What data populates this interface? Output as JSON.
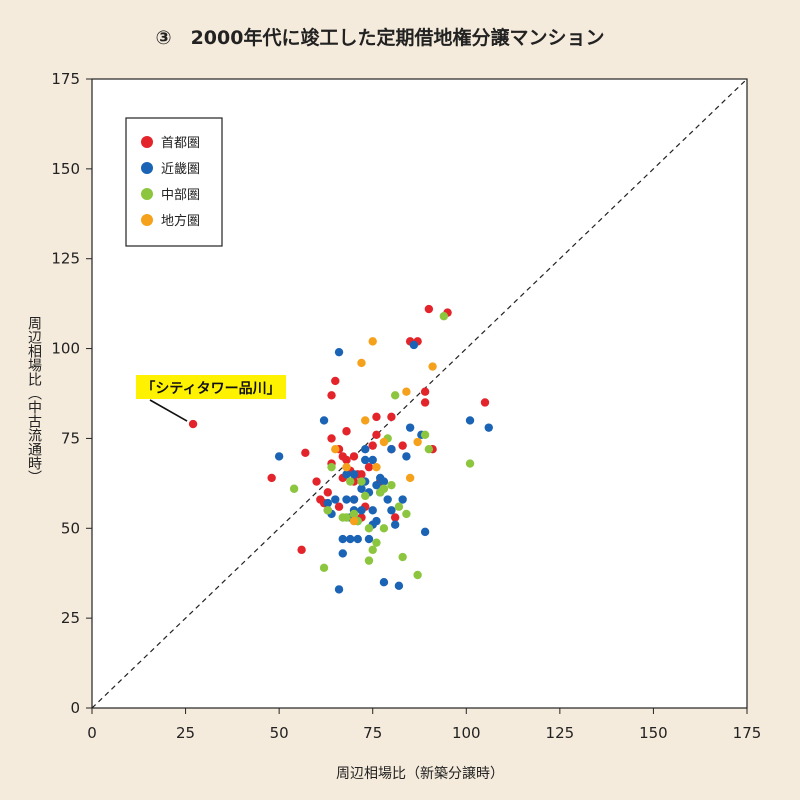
{
  "chart_data": {
    "type": "scatter",
    "title": "③　2000年代に竣工した定期借地権分譲マンション",
    "xlabel": "周辺相場比（新築分譲時）",
    "ylabel": "周辺相場比（中古流通時）",
    "xlim": [
      0,
      175
    ],
    "ylim": [
      0,
      175
    ],
    "xticks": [
      0,
      25,
      50,
      75,
      100,
      125,
      150,
      175
    ],
    "yticks": [
      0,
      25,
      50,
      75,
      100,
      125,
      150,
      175
    ],
    "grid": false,
    "reference_line": "y=x (dashed)",
    "legend_position": "top-left",
    "colors": {
      "首都圏": "#e3242b",
      "近畿圏": "#1a63b5",
      "中部圏": "#8cc63f",
      "地方圏": "#f5a11c"
    },
    "annotation": {
      "text": "「シティタワー品川」",
      "x": 27,
      "y": 79
    },
    "series": [
      {
        "name": "首都圏",
        "points": [
          [
            27,
            79
          ],
          [
            48,
            64
          ],
          [
            56,
            44
          ],
          [
            57,
            71
          ],
          [
            60,
            63
          ],
          [
            61,
            58
          ],
          [
            62,
            57
          ],
          [
            63,
            60
          ],
          [
            63,
            55
          ],
          [
            64,
            87
          ],
          [
            64,
            75
          ],
          [
            64,
            68
          ],
          [
            65,
            91
          ],
          [
            66,
            72
          ],
          [
            66,
            56
          ],
          [
            67,
            70
          ],
          [
            67,
            64
          ],
          [
            68,
            77
          ],
          [
            68,
            69
          ],
          [
            69,
            66
          ],
          [
            70,
            70
          ],
          [
            70,
            63
          ],
          [
            70,
            58
          ],
          [
            71,
            65
          ],
          [
            72,
            65
          ],
          [
            72,
            53
          ],
          [
            73,
            56
          ],
          [
            74,
            67
          ],
          [
            75,
            73
          ],
          [
            76,
            81
          ],
          [
            76,
            76
          ],
          [
            77,
            63
          ],
          [
            80,
            72
          ],
          [
            80,
            81
          ],
          [
            81,
            53
          ],
          [
            83,
            73
          ],
          [
            85,
            102
          ],
          [
            87,
            102
          ],
          [
            89,
            85
          ],
          [
            89,
            88
          ],
          [
            90,
            111
          ],
          [
            91,
            72
          ],
          [
            95,
            110
          ],
          [
            105,
            85
          ]
        ]
      },
      {
        "name": "近畿圏",
        "points": [
          [
            50,
            70
          ],
          [
            62,
            80
          ],
          [
            63,
            57
          ],
          [
            64,
            54
          ],
          [
            65,
            58
          ],
          [
            66,
            99
          ],
          [
            66,
            33
          ],
          [
            67,
            47
          ],
          [
            67,
            43
          ],
          [
            68,
            65
          ],
          [
            68,
            58
          ],
          [
            69,
            53
          ],
          [
            69,
            47
          ],
          [
            70,
            65
          ],
          [
            70,
            58
          ],
          [
            70,
            55
          ],
          [
            71,
            47
          ],
          [
            71,
            52
          ],
          [
            72,
            61
          ],
          [
            72,
            55
          ],
          [
            73,
            72
          ],
          [
            73,
            69
          ],
          [
            73,
            63
          ],
          [
            74,
            47
          ],
          [
            74,
            60
          ],
          [
            75,
            69
          ],
          [
            75,
            55
          ],
          [
            75,
            51
          ],
          [
            76,
            52
          ],
          [
            76,
            62
          ],
          [
            77,
            64
          ],
          [
            77,
            60
          ],
          [
            78,
            63
          ],
          [
            78,
            35
          ],
          [
            79,
            58
          ],
          [
            80,
            72
          ],
          [
            80,
            55
          ],
          [
            81,
            51
          ],
          [
            82,
            34
          ],
          [
            83,
            58
          ],
          [
            84,
            70
          ],
          [
            85,
            78
          ],
          [
            86,
            101
          ],
          [
            88,
            76
          ],
          [
            89,
            49
          ],
          [
            101,
            80
          ],
          [
            106,
            78
          ]
        ]
      },
      {
        "name": "中部圏",
        "points": [
          [
            54,
            61
          ],
          [
            62,
            39
          ],
          [
            63,
            55
          ],
          [
            64,
            67
          ],
          [
            67,
            53
          ],
          [
            68,
            53
          ],
          [
            69,
            63
          ],
          [
            70,
            54
          ],
          [
            71,
            52
          ],
          [
            72,
            63
          ],
          [
            73,
            59
          ],
          [
            74,
            50
          ],
          [
            74,
            41
          ],
          [
            75,
            44
          ],
          [
            76,
            46
          ],
          [
            77,
            60
          ],
          [
            78,
            50
          ],
          [
            78,
            61
          ],
          [
            79,
            75
          ],
          [
            80,
            62
          ],
          [
            81,
            87
          ],
          [
            82,
            56
          ],
          [
            83,
            42
          ],
          [
            84,
            54
          ],
          [
            87,
            37
          ],
          [
            89,
            76
          ],
          [
            90,
            72
          ],
          [
            94,
            109
          ],
          [
            101,
            68
          ]
        ]
      },
      {
        "name": "地方圏",
        "points": [
          [
            65,
            72
          ],
          [
            68,
            67
          ],
          [
            70,
            52
          ],
          [
            72,
            96
          ],
          [
            73,
            80
          ],
          [
            75,
            102
          ],
          [
            76,
            67
          ],
          [
            78,
            74
          ],
          [
            84,
            88
          ],
          [
            85,
            64
          ],
          [
            87,
            74
          ],
          [
            91,
            95
          ]
        ]
      }
    ]
  }
}
